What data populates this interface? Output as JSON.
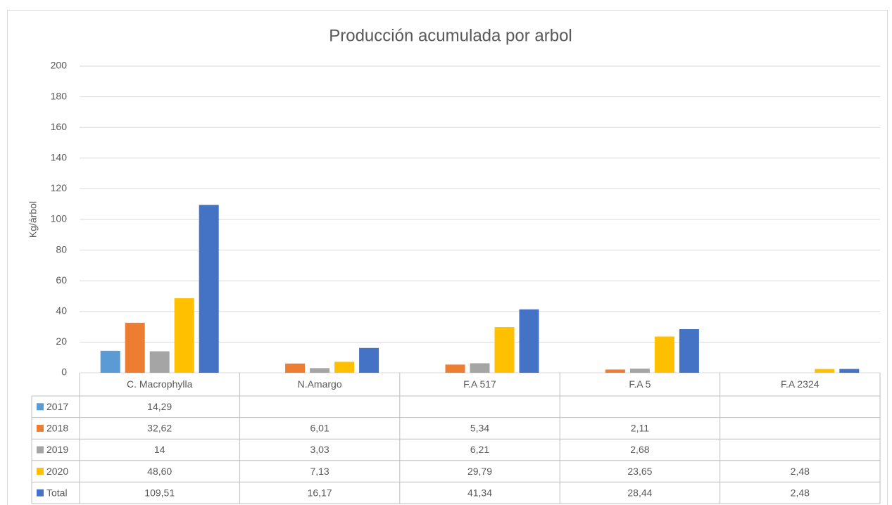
{
  "chart_data": {
    "type": "bar",
    "title": "Producción acumulada por arbol",
    "y_label": "Kg/árbol",
    "categories": [
      "C. Macrophylla",
      "N.Amargo",
      "F.A 517",
      "F.A 5",
      "F.A 2324"
    ],
    "series": [
      {
        "name": "2017",
        "color": "#5b9bd5",
        "values": [
          14.29,
          null,
          null,
          null,
          null
        ],
        "value_labels": [
          "14,29",
          null,
          null,
          null,
          null
        ]
      },
      {
        "name": "2018",
        "color": "#ed7d31",
        "values": [
          32.62,
          6.01,
          5.34,
          2.11,
          null
        ],
        "value_labels": [
          "32,62",
          "6,01",
          "5,34",
          "2,11",
          null
        ]
      },
      {
        "name": "2019",
        "color": "#a5a5a5",
        "values": [
          14,
          3.03,
          6.21,
          2.68,
          null
        ],
        "value_labels": [
          "14",
          "3,03",
          "6,21",
          "2,68",
          null
        ]
      },
      {
        "name": "2020",
        "color": "#ffc000",
        "values": [
          48.6,
          7.13,
          29.79,
          23.65,
          2.48
        ],
        "value_labels": [
          "48,60",
          "7,13",
          "29,79",
          "23,65",
          "2,48"
        ]
      },
      {
        "name": "Total",
        "color": "#4472c4",
        "values": [
          109.51,
          16.17,
          41.34,
          28.44,
          2.48
        ],
        "value_labels": [
          "109,51",
          "16,17",
          "41,34",
          "28,44",
          "2,48"
        ]
      }
    ],
    "ylim": [
      0,
      200
    ],
    "yticks": [
      0,
      20,
      40,
      60,
      80,
      100,
      120,
      140,
      160,
      180,
      200
    ],
    "grid": true,
    "data_table": true
  }
}
